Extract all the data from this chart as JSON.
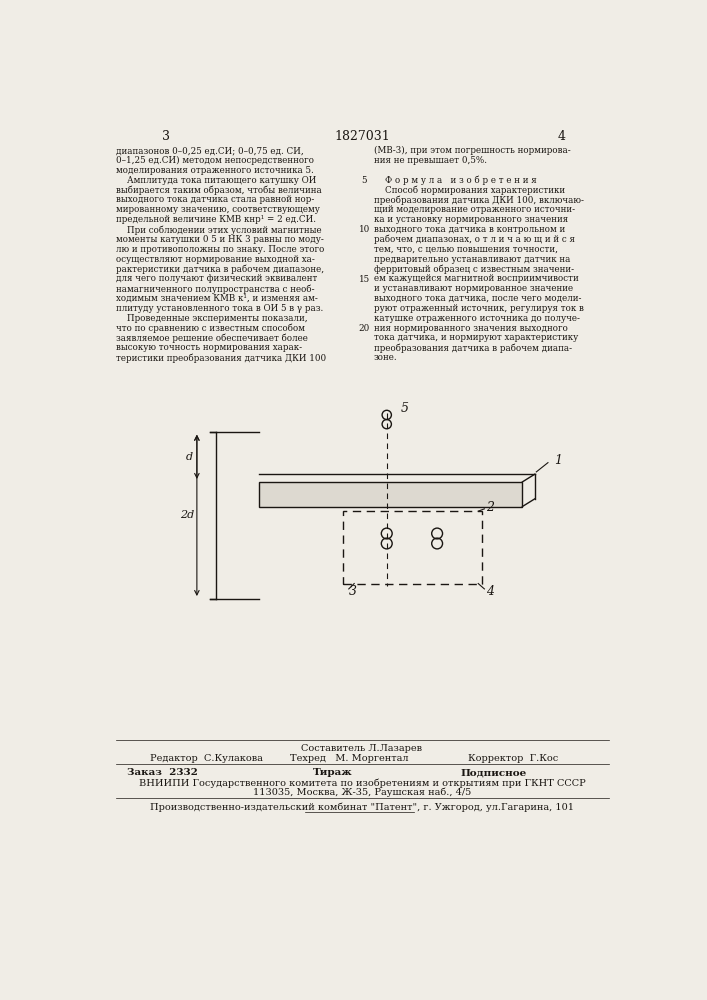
{
  "bg_color": "#f0ede6",
  "text_color": "#1a1612",
  "page_num_left": "3",
  "page_num_center": "1827031",
  "page_num_right": "4",
  "left_col_lines": [
    "диапазонов 0–0,25 ед.СИ; 0–0,75 ед. СИ,",
    "0–1,25 ед.СИ) методом непосредственного",
    "моделирования отраженного источника 5.",
    "    Амплитуда тока питающего катушку ОИ",
    "выбирается таким образом, чтобы величина",
    "выходного тока датчика стала равной нор-",
    "мированному значению, соответствующему",
    "предельной величине КМВ кнр¹ = 2 ед.СИ.",
    "    При соблюдении этих условий магнитные",
    "моменты катушки 0 5 и НК 3 равны по моду-",
    "лю и противоположны по знаку. После этого",
    "осуществляют нормирование выходной ха-",
    "рактеристики датчика в рабочем диапазоне,",
    "для чего получают физический эквивалент",
    "намагниченного полупространства с необ-",
    "ходимым значением КМВ к¹, и изменяя ам-",
    "плитуду установленного тока в ОИ 5 в γ раз.",
    "    Проведенные эксперименты показали,",
    "что по сравнению с известным способом",
    "заявляемое решение обеспечивает более",
    "высокую точность нормирования харак-",
    "теристики преобразования датчика ДКИ 100"
  ],
  "right_col_lines": [
    "(МВ-3), при этом погрешность нормирова-",
    "ния не превышает 0,5%.",
    "",
    "    Ф о р м у л а   и з о б р е т е н и я",
    "    Способ нормирования характеристики",
    "преобразования датчика ДКИ 100, включаю-",
    "щий моделирование отраженного источни-",
    "ка и установку нормированного значения",
    "выходного тока датчика в контрольном и",
    "рабочем диапазонах, о т л и ч а ю щ и й с я",
    "тем, что, с целью повышения точности,",
    "предварительно устанавливают датчик на",
    "ферритовый образец с известным значени-",
    "ем кажущейся магнитной восприимчивости",
    "и устанавливают нормированное значение",
    "выходного тока датчика, после чего модели-",
    "руют отраженный источник, регулируя ток в",
    "катушке отраженного источника до получе-",
    "ния нормированного значения выходного",
    "тока датчика, и нормируют характеристику",
    "преобразования датчика в рабочем диапа-",
    "зоне."
  ],
  "line_numbers": [
    "5",
    "10",
    "15",
    "20"
  ],
  "line_number_rows": [
    4,
    9,
    14,
    19
  ],
  "footer": {
    "row1": "Составитель Л.Лазарев",
    "row2_left": "Редактор  С.Кулакова",
    "row2_mid": "Техред   М. Моргентал",
    "row2_right": "Корректор  Г.Кос",
    "row3_left": "Заказ  2332",
    "row3_mid": "Тираж",
    "row3_right": "Подписное",
    "row4": "ВНИИПИ Государственного комитета по изобретениям и открытиям при ГКНТ СССР",
    "row5": "113035, Москва, Ж-35, Раушская наб., 4/5",
    "row6": "Производственно-издательский комбинат \"Патент\", г. Ужгород, ул.Гагарина, 101"
  }
}
